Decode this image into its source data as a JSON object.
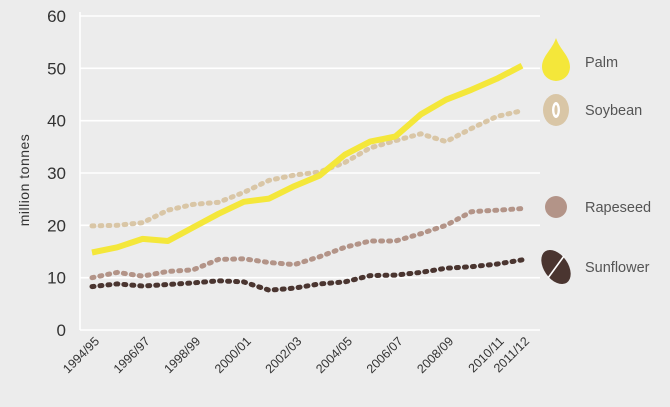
{
  "chart_data": {
    "type": "line",
    "title": "",
    "xlabel": "",
    "ylabel": "million tonnes",
    "ylim": [
      0,
      60
    ],
    "yticks": [
      0,
      10,
      20,
      30,
      40,
      50,
      60
    ],
    "grid": "horizontal",
    "legend_placement": "right",
    "x": [
      "1994/95",
      "1995/96",
      "1996/97",
      "1997/98",
      "1998/99",
      "1999/00",
      "2000/01",
      "2001/02",
      "2002/03",
      "2003/04",
      "2004/05",
      "2005/06",
      "2006/07",
      "2007/08",
      "2008/09",
      "2009/10",
      "2010/11",
      "2011/12"
    ],
    "xtick_labels": [
      "1994/95",
      "1996/97",
      "1998/99",
      "2000/01",
      "2002/03",
      "2004/05",
      "2006/07",
      "2008/09",
      "2010/11",
      "2011/12"
    ],
    "series": [
      {
        "name": "Palm",
        "color": "#f4e73a",
        "style": "solid",
        "icon": "palm-drop-icon",
        "values": [
          14.8,
          15.8,
          17.4,
          17.0,
          19.6,
          22.2,
          24.5,
          25.1,
          27.5,
          29.5,
          33.5,
          36.0,
          37.0,
          41.2,
          44.0,
          45.9,
          48.0,
          50.5
        ]
      },
      {
        "name": "Soybean",
        "color": "#d9c6a6",
        "style": "dotted",
        "icon": "soybean-icon",
        "values": [
          19.9,
          20.0,
          20.5,
          22.9,
          24.0,
          24.4,
          26.3,
          28.6,
          29.6,
          30.2,
          32.0,
          34.8,
          36.2,
          37.5,
          36.0,
          38.5,
          40.8,
          41.9
        ]
      },
      {
        "name": "Rapeseed",
        "color": "#b39488",
        "style": "dotted",
        "icon": "rapeseed-icon",
        "values": [
          10.0,
          11.0,
          10.3,
          11.2,
          11.5,
          13.5,
          13.6,
          12.9,
          12.5,
          14.0,
          15.8,
          17.0,
          17.0,
          18.4,
          20.0,
          22.6,
          22.9,
          23.2
        ]
      },
      {
        "name": "Sunflower",
        "color": "#4a3530",
        "style": "dotted",
        "icon": "sunflower-seed-icon",
        "values": [
          8.3,
          8.8,
          8.4,
          8.7,
          9.0,
          9.4,
          9.2,
          7.6,
          8.0,
          8.8,
          9.2,
          10.4,
          10.5,
          11.0,
          11.8,
          12.1,
          12.6,
          13.4
        ]
      }
    ]
  }
}
